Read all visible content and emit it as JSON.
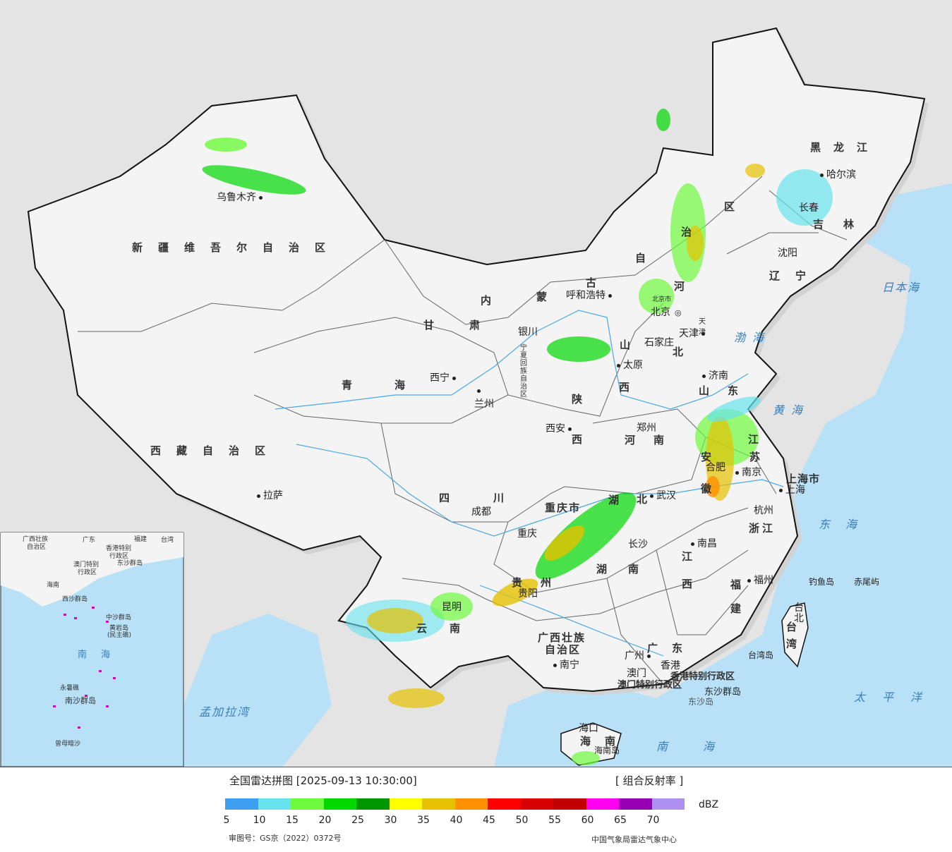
{
  "legend": {
    "title": "全国雷达拼图 [2025-09-13 10:30:00]",
    "product": "[ 组合反射率 ]",
    "unit": "dBZ",
    "colors": [
      "#3e9ef0",
      "#66e3ec",
      "#6efa3c",
      "#00d800",
      "#009600",
      "#ffff00",
      "#e6c200",
      "#ff9000",
      "#ff0000",
      "#d60000",
      "#c00000",
      "#ff00f0",
      "#9600b4",
      "#ae90f0"
    ],
    "ticks": [
      "5",
      "10",
      "15",
      "20",
      "25",
      "30",
      "35",
      "40",
      "45",
      "50",
      "55",
      "60",
      "65",
      "70"
    ],
    "review_no": "审图号：GS京（2022）0372号",
    "source": "中国气象局雷达气象中心"
  },
  "provinces": {
    "xinjiang": "新疆维吾尔自治区",
    "xizang": "西藏自治区",
    "qinghai": "青海",
    "gansu": "甘肃",
    "neimenggu_1": "内",
    "neimenggu_2": "蒙",
    "neimenggu_3": "古",
    "neimenggu_4": "自",
    "neimenggu_5": "治",
    "neimenggu_6": "区",
    "heilongjiang": "黑龙江",
    "jilin": "吉林",
    "liaoning": "辽宁",
    "hebei_1": "河",
    "hebei_2": "北",
    "shanxi_1": "山",
    "shanxi_2": "西",
    "shaanxi_1": "陕",
    "shaanxi_2": "西",
    "ningxia": "宁夏回族自治区",
    "shandong": "山东",
    "henan": "河南",
    "jiangsu_1": "江",
    "jiangsu_2": "苏",
    "anhui_1": "安",
    "anhui_2": "徽",
    "sichuan": "四川",
    "chongqing": "重庆市",
    "hubei_1": "湖",
    "hubei_2": "北",
    "hunan": "湖南",
    "jiangxi_1": "江",
    "jiangxi_2": "西",
    "zhejiang": "浙江",
    "fujian_1": "福",
    "fujian_2": "建",
    "guizhou_1": "贵",
    "guizhou_2": "州",
    "yunnan_1": "云",
    "yunnan_2": "南",
    "guangxi_1": "广西壮族",
    "guangxi_2": "自治区",
    "guangdong": "广东",
    "hainan": "海南",
    "taiwan": "台湾",
    "shanghai": "上海市",
    "xianggang": "香港特别行政区",
    "aomen": "澳门特别行政区"
  },
  "cities": {
    "urumqi": "乌鲁木齐",
    "lasa": "拉萨",
    "xining": "西宁",
    "lanzhou": "兰州",
    "yinchuan": "银川",
    "huhehaote": "呼和浩特",
    "beijing": "北京",
    "beijingshi": "北京市",
    "tianjin": "天津",
    "tianjin2": "天津",
    "shijiazhuang": "石家庄",
    "taiyuan": "太原",
    "jinan": "济南",
    "zhengzhou": "郑州",
    "xian": "西安",
    "chengdu": "成都",
    "chongqing": "重庆",
    "wuhan": "武汉",
    "hefei": "合肥",
    "nanjing": "南京",
    "shanghai": "上海",
    "hangzhou": "杭州",
    "changsha": "长沙",
    "nanchang": "南昌",
    "fuzhou": "福州",
    "taibei": "台北",
    "guiyang": "贵阳",
    "kunming": "昆明",
    "nanning": "南宁",
    "guangzhou": "广州",
    "xianggang": "香港",
    "aomen": "澳门",
    "haikou": "海口",
    "shenyang": "沈阳",
    "changchun": "长春",
    "haerbin": "哈尔滨"
  },
  "islands": {
    "diaoyudao": "钓鱼岛",
    "chiweiyu": "赤尾屿",
    "dongshaqundao": "东沙群岛",
    "dongshadao": "东沙岛",
    "hainandao": "海南岛",
    "taiwandao": "台湾岛"
  },
  "seas": {
    "ribenhai": "日本海",
    "bohai": "渤海",
    "huanghai": "黄海",
    "donghai": "东海",
    "taipingyang": "太平洋",
    "nanhai": "南海",
    "mengjialawan": "孟加拉湾"
  },
  "inset": {
    "guangxi": "广西壮族",
    "guangxi2": "自治区",
    "guangdong": "广东",
    "fujian": "福建",
    "taiwan": "台湾",
    "xianggang": "香港特别",
    "xianggang2": "行政区",
    "aomen": "澳门特别",
    "aomen2": "行政区",
    "dongsha": "东沙群岛",
    "hainan": "海南",
    "xisha": "西沙群岛",
    "zhongsha": "中沙群岛",
    "huangyan": "黄岩岛",
    "huangyan2": "(民主礁)",
    "nanhai": "南海",
    "yongshu": "永暑礁",
    "nansha": "南沙群岛",
    "zengmu": "曾母暗沙"
  }
}
